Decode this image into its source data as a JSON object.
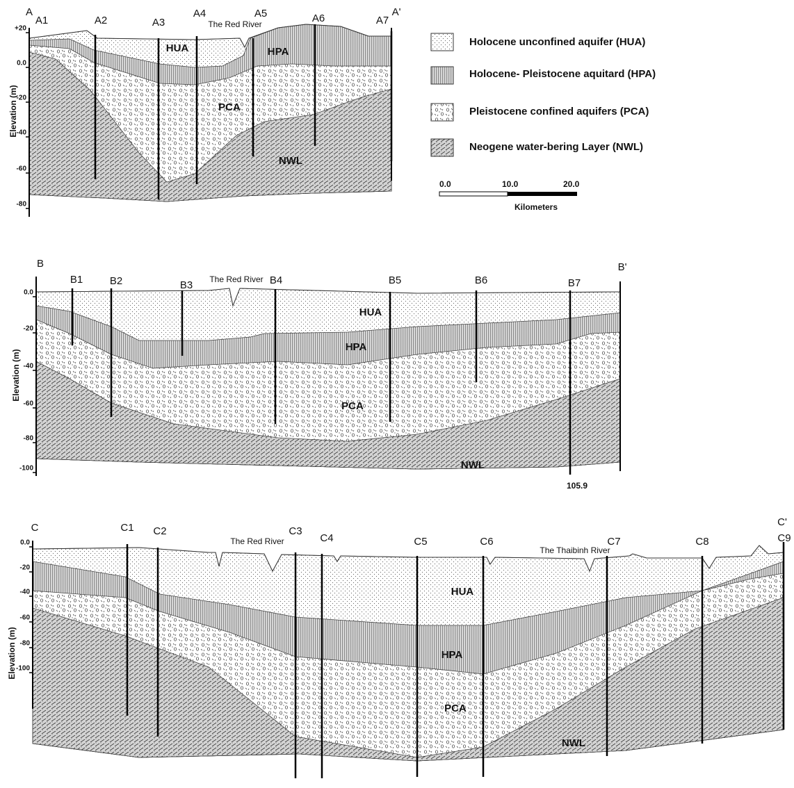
{
  "sections": [
    {
      "start": "A",
      "end": "A'",
      "wells": [
        "A1",
        "A2",
        "A3",
        "A4",
        "A5",
        "A6",
        "A7"
      ],
      "rivers": [
        "The Red River"
      ],
      "layers": [
        "HUA",
        "HPA",
        "PCA",
        "NWL"
      ],
      "y_axis_label": "Elevation (m)",
      "y_ticks": [
        "+20",
        "0.0",
        "-20",
        "-40",
        "-60",
        "-80"
      ]
    },
    {
      "start": "B",
      "end": "B'",
      "wells": [
        "B1",
        "B2",
        "B3",
        "B4",
        "B5",
        "B6",
        "B7"
      ],
      "rivers": [
        "The Red River"
      ],
      "layers": [
        "HUA",
        "HPA",
        "PCA",
        "NWL"
      ],
      "y_axis_label": "Elevation (m)",
      "y_ticks": [
        "0.0",
        "-20",
        "-40",
        "-60",
        "-80",
        "-100"
      ],
      "depth_label": "105.9"
    },
    {
      "start": "C",
      "end": "C'",
      "wells": [
        "C1",
        "C2",
        "C3",
        "C4",
        "C5",
        "C6",
        "C7",
        "C8",
        "C9"
      ],
      "rivers": [
        "The Red River",
        "The Thaibinh River"
      ],
      "layers": [
        "HUA",
        "HPA",
        "PCA",
        "NWL"
      ],
      "y_axis_label": "Elevation (m)",
      "y_ticks": [
        "0.0",
        "-20",
        "-40",
        "-60",
        "-80",
        "-100"
      ]
    }
  ],
  "legend": [
    "Holocene unconfined aquifer (HUA)",
    "Holocene- Pleistocene aquitard (HPA)",
    "Pleistocene confined aquifers (PCA)",
    "Neogene water-bering Layer (NWL)"
  ],
  "scale": {
    "ticks": [
      "0.0",
      "10.0",
      "20.0"
    ],
    "unit": "Kilometers"
  }
}
